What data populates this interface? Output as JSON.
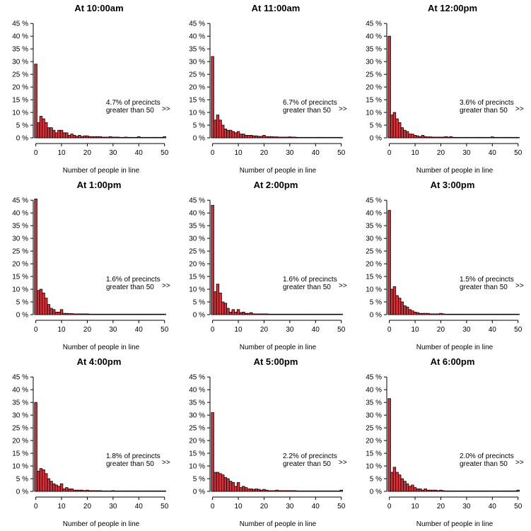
{
  "chart_data": [
    {
      "type": "bar",
      "title": "At 10:00am",
      "xlabel": "Number of people in line",
      "ylabel": "",
      "ylim": [
        0,
        45
      ],
      "yticks": [
        "0 %",
        "5 %",
        "10 %",
        "15 %",
        "20 %",
        "25 %",
        "30 %",
        "35 %",
        "40 %",
        "45 %"
      ],
      "xticks": [
        "0",
        "10",
        "20",
        "30",
        "40",
        "50"
      ],
      "annotation": [
        "4.7% of precincts",
        "greater than 50"
      ],
      "overflow_marker": ">>",
      "x": [
        0,
        1,
        2,
        3,
        4,
        5,
        6,
        7,
        8,
        9,
        10,
        11,
        12,
        13,
        14,
        15,
        16,
        17,
        18,
        19,
        20,
        21,
        22,
        23,
        24,
        25,
        26,
        27,
        28,
        29,
        30,
        31,
        32,
        33,
        34,
        35,
        36,
        37,
        38,
        39,
        40,
        41,
        42,
        43,
        44,
        45,
        46,
        47,
        48,
        49,
        50
      ],
      "values": [
        29,
        6,
        8.5,
        7.5,
        6,
        4,
        4,
        3,
        2,
        3,
        3,
        2,
        2,
        1,
        1.5,
        1,
        0.6,
        1,
        0.5,
        0.8,
        0.8,
        0.5,
        0.5,
        0.5,
        0.5,
        0.5,
        0.3,
        0.3,
        0.3,
        0.5,
        0.3,
        0.3,
        0.3,
        0.2,
        0.2,
        0.3,
        0.2,
        0.2,
        0.2,
        0.2,
        0.5,
        0.2,
        0.2,
        0.2,
        0.2,
        0.2,
        0.2,
        0.2,
        0.2,
        0.2,
        0.5
      ]
    },
    {
      "type": "bar",
      "title": "At 11:00am",
      "xlabel": "Number of people in line",
      "ylabel": "",
      "ylim": [
        0,
        45
      ],
      "yticks": [
        "0 %",
        "5 %",
        "10 %",
        "15 %",
        "20 %",
        "25 %",
        "30 %",
        "35 %",
        "40 %",
        "45 %"
      ],
      "xticks": [
        "0",
        "10",
        "20",
        "30",
        "40",
        "50"
      ],
      "annotation": [
        "6.7% of precincts",
        "greater than 50"
      ],
      "overflow_marker": ">>",
      "x": [
        0,
        1,
        2,
        3,
        4,
        5,
        6,
        7,
        8,
        9,
        10,
        11,
        12,
        13,
        14,
        15,
        16,
        17,
        18,
        19,
        20,
        21,
        22,
        23,
        24,
        25,
        26,
        27,
        28,
        29,
        30,
        31,
        32,
        33,
        34,
        35,
        36,
        37,
        38,
        39,
        40,
        41,
        42,
        43,
        44,
        45,
        46,
        47,
        48,
        49,
        50
      ],
      "values": [
        32,
        7,
        9,
        7,
        5,
        3.5,
        3,
        3,
        2.5,
        2,
        2.5,
        1.5,
        1.5,
        1,
        1,
        1,
        0.8,
        0.8,
        0.6,
        0.6,
        1,
        0.5,
        0.5,
        0.5,
        0.4,
        0.4,
        0.3,
        0.3,
        0.3,
        0.3,
        0.4,
        0.3,
        0.3,
        0.2,
        0.2,
        0.2,
        0.2,
        0.2,
        0.2,
        0.2,
        0.2,
        0.2,
        0.2,
        0.2,
        0.2,
        0.2,
        0.2,
        0.2,
        0.2,
        0.2,
        0.2
      ]
    },
    {
      "type": "bar",
      "title": "At 12:00pm",
      "xlabel": "Number of people in line",
      "ylabel": "",
      "ylim": [
        0,
        45
      ],
      "yticks": [
        "0 %",
        "5 %",
        "10 %",
        "15 %",
        "20 %",
        "25 %",
        "30 %",
        "35 %",
        "40 %",
        "45 %"
      ],
      "xticks": [
        "0",
        "10",
        "20",
        "30",
        "40",
        "50"
      ],
      "annotation": [
        "3.6% of precincts",
        "greater than 50"
      ],
      "overflow_marker": ">>",
      "x": [
        0,
        1,
        2,
        3,
        4,
        5,
        6,
        7,
        8,
        9,
        10,
        11,
        12,
        13,
        14,
        15,
        16,
        17,
        18,
        19,
        20,
        21,
        22,
        23,
        24,
        25,
        26,
        27,
        28,
        29,
        30,
        31,
        32,
        33,
        34,
        35,
        36,
        37,
        38,
        39,
        40,
        41,
        42,
        43,
        44,
        45,
        46,
        47,
        48,
        49,
        50
      ],
      "values": [
        40,
        9,
        10,
        7.5,
        6,
        4,
        3,
        2.5,
        1.5,
        1.5,
        1,
        0.8,
        0.5,
        1,
        0.5,
        0.4,
        0.4,
        0.3,
        0.3,
        0.3,
        0.3,
        0.3,
        0.5,
        0.3,
        0.5,
        0.2,
        0.2,
        0.2,
        0.2,
        0.2,
        0.2,
        0.2,
        0.2,
        0.2,
        0.2,
        0.2,
        0.2,
        0.2,
        0.2,
        0.2,
        0.4,
        0.2,
        0.2,
        0.2,
        0.2,
        0.2,
        0.2,
        0.2,
        0.2,
        0.2,
        0.2
      ]
    },
    {
      "type": "bar",
      "title": "At 1:00pm",
      "xlabel": "Number of people in line",
      "ylabel": "",
      "ylim": [
        0,
        45
      ],
      "yticks": [
        "0 %",
        "5 %",
        "10 %",
        "15 %",
        "20 %",
        "25 %",
        "30 %",
        "35 %",
        "40 %",
        "45 %"
      ],
      "xticks": [
        "0",
        "10",
        "20",
        "30",
        "40",
        "50"
      ],
      "annotation": [
        "1.6% of precincts",
        "greater than 50"
      ],
      "overflow_marker": ">>",
      "x": [
        0,
        1,
        2,
        3,
        4,
        5,
        6,
        7,
        8,
        9,
        10,
        11,
        12,
        13,
        14,
        15,
        16,
        17,
        18,
        19,
        20,
        21,
        22,
        23,
        24,
        25,
        26,
        27,
        28,
        29,
        30,
        31,
        32,
        33,
        34,
        35,
        36,
        37,
        38,
        39,
        40,
        41,
        42,
        43,
        44,
        45,
        46,
        47,
        48,
        49,
        50
      ],
      "values": [
        45.5,
        9.5,
        10,
        8.5,
        6.5,
        4,
        2.5,
        2,
        1,
        1,
        2,
        0.5,
        0.5,
        0.4,
        0.4,
        0.3,
        0.3,
        0.3,
        0.3,
        0.3,
        0.3,
        0.2,
        0.2,
        0.2,
        0.2,
        0.2,
        0.2,
        0.2,
        0.2,
        0.2,
        0.2,
        0.2,
        0.2,
        0.2,
        0.2,
        0.2,
        0.2,
        0.2,
        0.2,
        0.2,
        0.2,
        0.2,
        0.2,
        0.2,
        0.2,
        0.2,
        0.2,
        0.2,
        0.2,
        0.2,
        0.2
      ]
    },
    {
      "type": "bar",
      "title": "At 2:00pm",
      "xlabel": "Number of people in line",
      "ylabel": "",
      "ylim": [
        0,
        45
      ],
      "yticks": [
        "0 %",
        "5 %",
        "10 %",
        "15 %",
        "20 %",
        "25 %",
        "30 %",
        "35 %",
        "40 %",
        "45 %"
      ],
      "xticks": [
        "0",
        "10",
        "20",
        "30",
        "40",
        "50"
      ],
      "annotation": [
        "1.6% of precincts",
        "greater than 50"
      ],
      "overflow_marker": ">>",
      "x": [
        0,
        1,
        2,
        3,
        4,
        5,
        6,
        7,
        8,
        9,
        10,
        11,
        12,
        13,
        14,
        15,
        16,
        17,
        18,
        19,
        20,
        21,
        22,
        23,
        24,
        25,
        26,
        27,
        28,
        29,
        30,
        31,
        32,
        33,
        34,
        35,
        36,
        37,
        38,
        39,
        40,
        41,
        42,
        43,
        44,
        45,
        46,
        47,
        48,
        49,
        50
      ],
      "values": [
        43,
        9,
        12,
        8.5,
        5,
        4.5,
        2.5,
        1,
        2,
        1,
        2,
        0.8,
        1,
        0.5,
        0.5,
        0.8,
        0.3,
        0.3,
        0.3,
        0.3,
        0.3,
        0.3,
        0.2,
        0.2,
        0.2,
        0.2,
        0.2,
        0.2,
        0.2,
        0.2,
        0.2,
        0.2,
        0.2,
        0.2,
        0.2,
        0.2,
        0.2,
        0.2,
        0.2,
        0.2,
        0.2,
        0.2,
        0.2,
        0.2,
        0.2,
        0.2,
        0.2,
        0.2,
        0.2,
        0.2,
        0.2
      ]
    },
    {
      "type": "bar",
      "title": "At 3:00pm",
      "xlabel": "Number of people in line",
      "ylabel": "",
      "ylim": [
        0,
        45
      ],
      "yticks": [
        "0 %",
        "5 %",
        "10 %",
        "15 %",
        "20 %",
        "25 %",
        "30 %",
        "35 %",
        "40 %",
        "45 %"
      ],
      "xticks": [
        "0",
        "10",
        "20",
        "30",
        "40",
        "50"
      ],
      "annotation": [
        "1.5% of precincts",
        "greater than 50"
      ],
      "overflow_marker": ">>",
      "x": [
        0,
        1,
        2,
        3,
        4,
        5,
        6,
        7,
        8,
        9,
        10,
        11,
        12,
        13,
        14,
        15,
        16,
        17,
        18,
        19,
        20,
        21,
        22,
        23,
        24,
        25,
        26,
        27,
        28,
        29,
        30,
        31,
        32,
        33,
        34,
        35,
        36,
        37,
        38,
        39,
        40,
        41,
        42,
        43,
        44,
        45,
        46,
        47,
        48,
        49,
        50
      ],
      "values": [
        41,
        10,
        11,
        7.5,
        6.5,
        5,
        3.5,
        3,
        2,
        1.5,
        1,
        0.8,
        0.5,
        0.5,
        0.5,
        0.5,
        0.3,
        0.3,
        0.3,
        0.3,
        0.5,
        0.3,
        0.2,
        0.2,
        0.2,
        0.2,
        0.2,
        0.2,
        0.2,
        0.2,
        0.2,
        0.2,
        0.2,
        0.2,
        0.2,
        0.2,
        0.2,
        0.2,
        0.2,
        0.2,
        0.2,
        0.2,
        0.2,
        0.2,
        0.2,
        0.2,
        0.2,
        0.2,
        0.2,
        0.2,
        0.2
      ]
    },
    {
      "type": "bar",
      "title": "At 4:00pm",
      "xlabel": "Number of people in line",
      "ylabel": "",
      "ylim": [
        0,
        45
      ],
      "yticks": [
        "0 %",
        "5 %",
        "10 %",
        "15 %",
        "20 %",
        "25 %",
        "30 %",
        "35 %",
        "40 %",
        "45 %"
      ],
      "xticks": [
        "0",
        "10",
        "20",
        "30",
        "40",
        "50"
      ],
      "annotation": [
        "1.8% of precincts",
        "greater than 50"
      ],
      "overflow_marker": ">>",
      "x": [
        0,
        1,
        2,
        3,
        4,
        5,
        6,
        7,
        8,
        9,
        10,
        11,
        12,
        13,
        14,
        15,
        16,
        17,
        18,
        19,
        20,
        21,
        22,
        23,
        24,
        25,
        26,
        27,
        28,
        29,
        30,
        31,
        32,
        33,
        34,
        35,
        36,
        37,
        38,
        39,
        40,
        41,
        42,
        43,
        44,
        45,
        46,
        47,
        48,
        49,
        50
      ],
      "values": [
        35,
        8,
        9,
        8.5,
        7,
        5,
        4,
        3,
        2.5,
        2,
        3,
        1,
        1.5,
        1,
        1,
        0.5,
        0.5,
        0.5,
        0.5,
        0.3,
        0.5,
        0.3,
        0.3,
        0.3,
        0.3,
        0.3,
        0.2,
        0.2,
        0.2,
        0.2,
        0.3,
        0.2,
        0.2,
        0.2,
        0.2,
        0.2,
        0.2,
        0.2,
        0.2,
        0.2,
        0.2,
        0.2,
        0.2,
        0.2,
        0.2,
        0.2,
        0.2,
        0.2,
        0.2,
        0.2,
        0.2
      ]
    },
    {
      "type": "bar",
      "title": "At 5:00pm",
      "xlabel": "Number of people in line",
      "ylabel": "",
      "ylim": [
        0,
        45
      ],
      "yticks": [
        "0 %",
        "5 %",
        "10 %",
        "15 %",
        "20 %",
        "25 %",
        "30 %",
        "35 %",
        "40 %",
        "45 %"
      ],
      "xticks": [
        "0",
        "10",
        "20",
        "30",
        "40",
        "50"
      ],
      "annotation": [
        "2.2% of precincts",
        "greater than 50"
      ],
      "overflow_marker": ">>",
      "x": [
        0,
        1,
        2,
        3,
        4,
        5,
        6,
        7,
        8,
        9,
        10,
        11,
        12,
        13,
        14,
        15,
        16,
        17,
        18,
        19,
        20,
        21,
        22,
        23,
        24,
        25,
        26,
        27,
        28,
        29,
        30,
        31,
        32,
        33,
        34,
        35,
        36,
        37,
        38,
        39,
        40,
        41,
        42,
        43,
        44,
        45,
        46,
        47,
        48,
        49,
        50
      ],
      "values": [
        31,
        7.5,
        7.5,
        7,
        6.5,
        5.5,
        5,
        4,
        3.5,
        2,
        3.5,
        1.5,
        2,
        1.5,
        1,
        1,
        0.8,
        1,
        0.8,
        0.5,
        0.8,
        0.5,
        0.3,
        0.3,
        0.3,
        0.5,
        0.3,
        0.3,
        0.3,
        0.3,
        0.3,
        0.3,
        0.3,
        0.2,
        0.2,
        0.2,
        0.2,
        0.2,
        0.2,
        0.2,
        0.2,
        0.2,
        0.2,
        0.2,
        0.2,
        0.2,
        0.2,
        0.2,
        0.2,
        0.2,
        0.5
      ]
    },
    {
      "type": "bar",
      "title": "At 6:00pm",
      "xlabel": "Number of people in line",
      "ylabel": "",
      "ylim": [
        0,
        45
      ],
      "yticks": [
        "0 %",
        "5 %",
        "10 %",
        "15 %",
        "20 %",
        "25 %",
        "30 %",
        "35 %",
        "40 %",
        "45 %"
      ],
      "xticks": [
        "0",
        "10",
        "20",
        "30",
        "40",
        "50"
      ],
      "annotation": [
        "2.0% of precincts",
        "greater than 50"
      ],
      "overflow_marker": ">>",
      "x": [
        0,
        1,
        2,
        3,
        4,
        5,
        6,
        7,
        8,
        9,
        10,
        11,
        12,
        13,
        14,
        15,
        16,
        17,
        18,
        19,
        20,
        21,
        22,
        23,
        24,
        25,
        26,
        27,
        28,
        29,
        30,
        31,
        32,
        33,
        34,
        35,
        36,
        37,
        38,
        39,
        40,
        41,
        42,
        43,
        44,
        45,
        46,
        47,
        48,
        49,
        50
      ],
      "values": [
        36.5,
        7.5,
        9.5,
        7.5,
        6.5,
        5,
        4,
        3,
        2,
        2.5,
        1.5,
        1,
        1,
        0.5,
        1,
        0.5,
        0.5,
        0.5,
        0.5,
        0.3,
        0.5,
        0.3,
        0.2,
        0.2,
        0.2,
        0.2,
        0.2,
        0.2,
        0.2,
        0.2,
        0.2,
        0.2,
        0.2,
        0.2,
        0.2,
        0.2,
        0.2,
        0.2,
        0.2,
        0.2,
        0.2,
        0.2,
        0.2,
        0.2,
        0.2,
        0.2,
        0.2,
        0.2,
        0.2,
        0.2,
        0.5
      ]
    }
  ],
  "colors": {
    "bar_fill": "#d7303a",
    "bar_stroke": "#000000",
    "background": "#ffffff"
  }
}
